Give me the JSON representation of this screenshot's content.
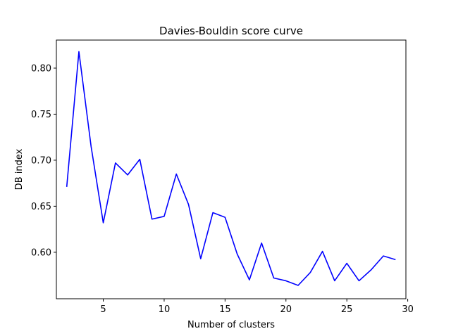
{
  "chart_data": {
    "type": "line",
    "title": "Davies-Bouldin score curve",
    "xlabel": "Number of clusters",
    "ylabel": "DB index",
    "xlim": [
      1.15,
      29.85
    ],
    "ylim": [
      0.5495,
      0.8305
    ],
    "xticks": [
      5,
      10,
      15,
      20,
      25,
      30
    ],
    "xtick_labels": [
      "5",
      "10",
      "15",
      "20",
      "25",
      "30"
    ],
    "yticks": [
      0.6,
      0.65,
      0.7,
      0.75,
      0.8
    ],
    "ytick_labels": [
      "0.60",
      "0.65",
      "0.70",
      "0.75",
      "0.80"
    ],
    "grid": false,
    "series": [
      {
        "color": "#0000ff",
        "x": [
          2,
          3,
          4,
          5,
          6,
          7,
          8,
          9,
          10,
          11,
          12,
          13,
          14,
          15,
          16,
          17,
          18,
          19,
          20,
          21,
          22,
          23,
          24,
          25,
          26,
          27,
          28,
          29
        ],
        "values": [
          0.671,
          0.818,
          0.715,
          0.632,
          0.697,
          0.684,
          0.701,
          0.636,
          0.639,
          0.685,
          0.652,
          0.593,
          0.643,
          0.638,
          0.598,
          0.57,
          0.61,
          0.572,
          0.569,
          0.564,
          0.578,
          0.601,
          0.569,
          0.588,
          0.569,
          0.581,
          0.596,
          0.592
        ]
      }
    ]
  }
}
